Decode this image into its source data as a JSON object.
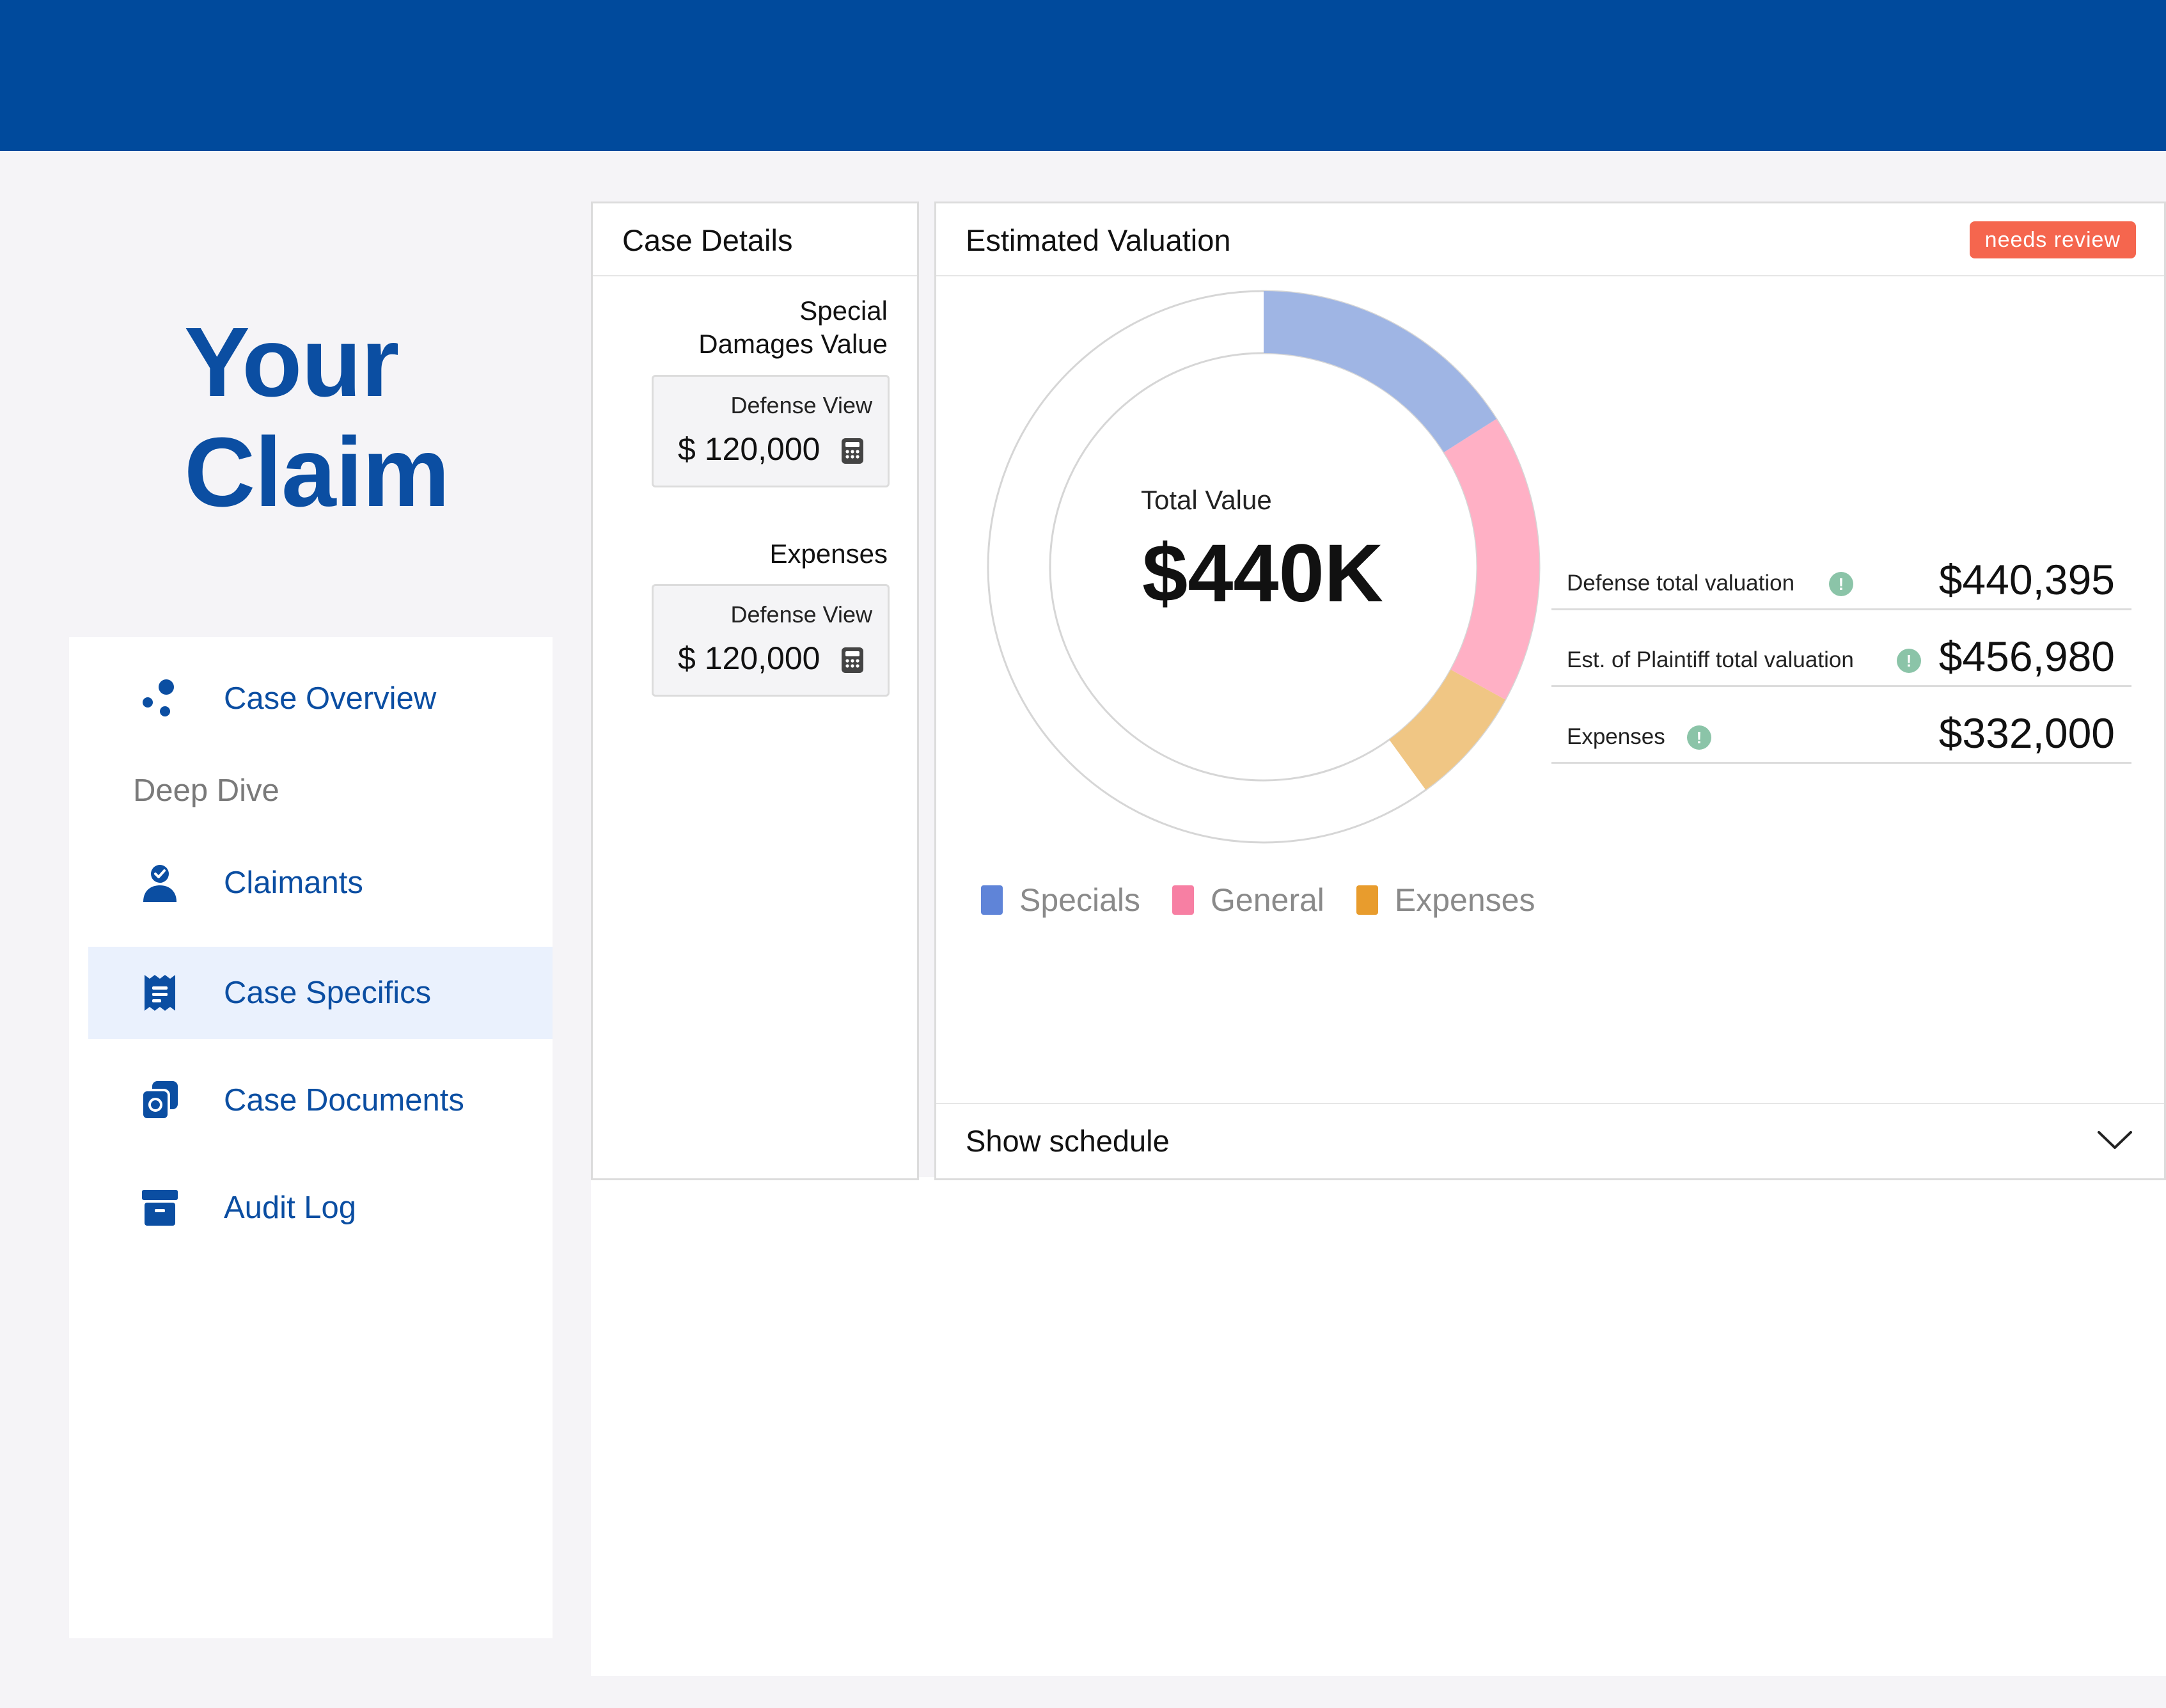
{
  "brand": {
    "line1": "Your",
    "line2": "Claim"
  },
  "nav": {
    "items": [
      {
        "label": "Case Overview",
        "icon": "dots-icon"
      },
      {
        "label": "Claimants",
        "icon": "user-check-icon"
      },
      {
        "label": "Case Specifics",
        "icon": "receipt-icon",
        "active": true
      },
      {
        "label": "Case Documents",
        "icon": "documents-icon"
      },
      {
        "label": "Audit Log",
        "icon": "archive-box-icon"
      }
    ],
    "section_label": "Deep Dive"
  },
  "case_details": {
    "title": "Case Details",
    "special_damages": {
      "label_line1": "Special",
      "label_line2": "Damages Value",
      "caption": "Defense View",
      "value": "$ 120,000"
    },
    "expenses": {
      "label": "Expenses",
      "caption": "Defense View",
      "value": "$ 120,000"
    }
  },
  "valuation": {
    "title": "Estimated Valuation",
    "badge": "needs review",
    "center_label": "Total Value",
    "center_value": "$440K",
    "metrics": [
      {
        "label": "Defense total valuation",
        "value": "$440,395"
      },
      {
        "label": "Est. of Plaintiff total valuation",
        "value": "$456,980"
      },
      {
        "label": "Expenses",
        "value": "$332,000"
      }
    ],
    "legend": [
      {
        "label": "Specials",
        "color": "#5f84d8"
      },
      {
        "label": "General",
        "color": "#f77fa3"
      },
      {
        "label": "Expenses",
        "color": "#e89c2d"
      }
    ],
    "schedule_label": "Show schedule"
  },
  "colors": {
    "brand_blue": "#004a9c",
    "nav_text": "#0b4ea2",
    "badge": "#f5664e",
    "specials_arc": "#9fb5e4",
    "general_arc": "#ffb0c5",
    "expenses_arc": "#f0c684"
  },
  "chart_data": {
    "type": "pie",
    "categories": [
      "Specials",
      "General",
      "Expenses"
    ],
    "values": [
      16,
      17,
      7
    ],
    "unit": "% of ring (approx.)",
    "center_text": "$440K"
  }
}
